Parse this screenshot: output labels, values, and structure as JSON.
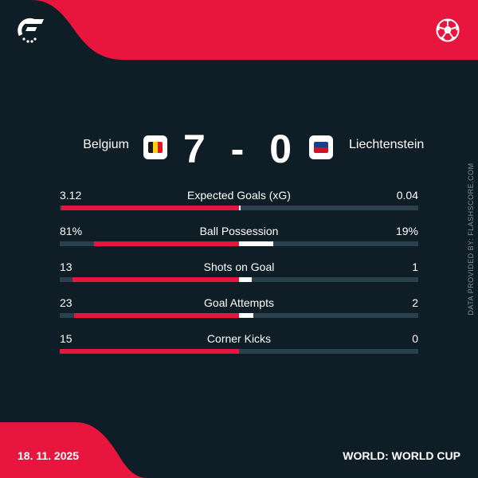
{
  "colors": {
    "accent": "#e8153f",
    "background": "#0f1d26",
    "bar_track": "#28414d",
    "away_bar": "#ffffff"
  },
  "icons": {
    "logo": "flashscore-logo-icon",
    "sport": "football-icon"
  },
  "match": {
    "home_team": "Belgium",
    "away_team": "Liechtenstein",
    "home_score": "7",
    "separator": "-",
    "away_score": "0",
    "home_flag": "belgium-flag-icon",
    "away_flag": "liechtenstein-flag-icon"
  },
  "stats": [
    {
      "label": "Expected Goals (xG)",
      "home": "3.12",
      "away": "0.04",
      "home_share": 0.99,
      "away_share": 0.01
    },
    {
      "label": "Ball Possession",
      "home": "81%",
      "away": "19%",
      "home_share": 0.81,
      "away_share": 0.19
    },
    {
      "label": "Shots on Goal",
      "home": "13",
      "away": "1",
      "home_share": 0.929,
      "away_share": 0.071
    },
    {
      "label": "Goal Attempts",
      "home": "23",
      "away": "2",
      "home_share": 0.92,
      "away_share": 0.08
    },
    {
      "label": "Corner Kicks",
      "home": "15",
      "away": "0",
      "home_share": 1.0,
      "away_share": 0.0
    }
  ],
  "credit": "DATA PROVIDED BY: FLASHSCORE.COM",
  "footer": {
    "date": "18. 11. 2025",
    "competition": "WORLD: WORLD CUP"
  }
}
